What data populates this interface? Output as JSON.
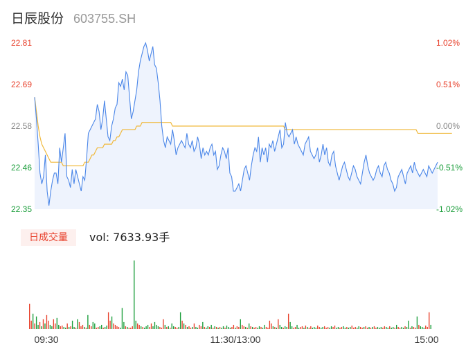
{
  "header": {
    "name": "日辰股份",
    "code": "603755.SH"
  },
  "volume_panel": {
    "tag": "日成交量",
    "label": "vol: 7633.93手"
  },
  "colors": {
    "price_line": "#4a86e8",
    "avg_line": "#f0b93c",
    "up": "#e8412c",
    "down": "#1a9d3a",
    "flat": "#888888",
    "fill": "#eef3fd"
  },
  "chart_data": [
    {
      "type": "line",
      "title": "",
      "x_ticks": [
        "09:30",
        "11:30/13:00",
        "15:00"
      ],
      "y_ticks": [
        "22.81",
        "22.69",
        "22.58",
        "22.46",
        "22.35"
      ],
      "y_right_ticks": [
        "1.02%",
        "0.51%",
        "0.00%",
        "-0.51%",
        "-1.02%"
      ],
      "ylim": [
        22.35,
        22.81
      ],
      "prev_close": 22.58,
      "grid": false,
      "series": [
        {
          "values": [
            22.66,
            22.6,
            22.53,
            22.45,
            22.42,
            22.44,
            22.5,
            22.4,
            22.36,
            22.4,
            22.43,
            22.45,
            22.45,
            22.42,
            22.52,
            22.48,
            22.52,
            22.56,
            22.44,
            22.43,
            22.41,
            22.46,
            22.42,
            22.46,
            22.44,
            22.42,
            22.4,
            22.44,
            22.43,
            22.49,
            22.56,
            22.57,
            22.58,
            22.59,
            22.6,
            22.64,
            22.62,
            22.57,
            22.6,
            22.65,
            22.6,
            22.55,
            22.54,
            22.58,
            22.6,
            22.63,
            22.64,
            22.7,
            22.69,
            22.71,
            22.68,
            22.73,
            22.72,
            22.66,
            22.6,
            22.62,
            22.65,
            22.68,
            22.73,
            22.76,
            22.78,
            22.8,
            22.81,
            22.79,
            22.76,
            22.78,
            22.8,
            22.75,
            22.74,
            22.7,
            22.65,
            22.58,
            22.54,
            22.52,
            22.55,
            22.54,
            22.53,
            22.57,
            22.54,
            22.5,
            22.52,
            22.53,
            22.54,
            22.53,
            22.52,
            22.56,
            22.53,
            22.52,
            22.54,
            22.51,
            22.52,
            22.55,
            22.53,
            22.49,
            22.52,
            22.5,
            22.51,
            22.5,
            22.52,
            22.53,
            22.5,
            22.51,
            22.46,
            22.47,
            22.5,
            22.52,
            22.51,
            22.49,
            22.52,
            22.45,
            22.44,
            22.4,
            22.4,
            22.41,
            22.42,
            22.4,
            22.43,
            22.46,
            22.47,
            22.45,
            22.43,
            22.47,
            22.5,
            22.52,
            22.51,
            22.55,
            22.48,
            22.52,
            22.5,
            22.52,
            22.48,
            22.53,
            22.52,
            22.54,
            22.51,
            22.53,
            22.55,
            22.57,
            22.52,
            22.53,
            22.59,
            22.56,
            22.55,
            22.56,
            22.57,
            22.53,
            22.55,
            22.53,
            22.52,
            22.51,
            22.5,
            22.53,
            22.54,
            22.55,
            22.51,
            22.5,
            22.49,
            22.5,
            22.52,
            22.48,
            22.5,
            22.53,
            22.5,
            22.52,
            22.48,
            22.47,
            22.5,
            22.51,
            22.47,
            22.45,
            22.43,
            22.45,
            22.47,
            22.48,
            22.46,
            22.44,
            22.43,
            22.45,
            22.47,
            22.46,
            22.44,
            22.43,
            22.42,
            22.45,
            22.48,
            22.5,
            22.47,
            22.45,
            22.44,
            22.43,
            22.44,
            22.46,
            22.47,
            22.45,
            22.44,
            22.47,
            22.48,
            22.46,
            22.45,
            22.43,
            22.42,
            22.4,
            22.41,
            22.44,
            22.45,
            22.46,
            22.44,
            22.42,
            22.45,
            22.46,
            22.47,
            22.45,
            22.48,
            22.46,
            22.45,
            22.44,
            22.45,
            22.46,
            22.45,
            22.44,
            22.47,
            22.46,
            22.45,
            22.46,
            22.47,
            22.48
          ]
        },
        {
          "values": [
            22.66,
            22.62,
            22.58,
            22.55,
            22.53,
            22.52,
            22.51,
            22.5,
            22.49,
            22.48,
            22.48,
            22.48,
            22.48,
            22.48,
            22.48,
            22.48,
            22.47,
            22.47,
            22.47,
            22.47,
            22.47,
            22.47,
            22.47,
            22.47,
            22.47,
            22.47,
            22.47,
            22.47,
            22.48,
            22.48,
            22.48,
            22.49,
            22.5,
            22.5,
            22.51,
            22.52,
            22.52,
            22.52,
            22.52,
            22.53,
            22.53,
            22.53,
            22.53,
            22.53,
            22.54,
            22.54,
            22.55,
            22.55,
            22.56,
            22.57,
            22.57,
            22.57,
            22.57,
            22.57,
            22.57,
            22.57,
            22.57,
            22.58,
            22.58,
            22.58,
            22.59,
            22.59,
            22.59,
            22.59,
            22.59,
            22.59,
            22.59,
            22.59,
            22.59,
            22.59,
            22.59,
            22.59,
            22.59,
            22.59,
            22.59,
            22.59,
            22.59,
            22.58,
            22.58,
            22.58,
            22.58,
            22.58,
            22.58,
            22.58,
            22.58,
            22.58,
            22.58,
            22.58,
            22.58,
            22.58,
            22.58,
            22.58,
            22.58,
            22.58,
            22.58,
            22.58,
            22.58,
            22.58,
            22.58,
            22.58,
            22.58,
            22.58,
            22.58,
            22.58,
            22.58,
            22.58,
            22.58,
            22.58,
            22.58,
            22.58,
            22.58,
            22.58,
            22.58,
            22.58,
            22.58,
            22.58,
            22.58,
            22.58,
            22.58,
            22.58,
            22.58,
            22.58,
            22.58,
            22.58,
            22.58,
            22.58,
            22.58,
            22.58,
            22.58,
            22.58,
            22.58,
            22.58,
            22.58,
            22.58,
            22.58,
            22.58,
            22.58,
            22.58,
            22.58,
            22.58,
            22.57,
            22.57,
            22.57,
            22.57,
            22.57,
            22.57,
            22.57,
            22.57,
            22.57,
            22.57,
            22.57,
            22.57,
            22.57,
            22.57,
            22.57,
            22.57,
            22.57,
            22.57,
            22.57,
            22.57,
            22.57,
            22.57,
            22.57,
            22.57,
            22.57,
            22.57,
            22.57,
            22.57,
            22.57,
            22.57,
            22.57,
            22.57,
            22.57,
            22.57,
            22.57,
            22.57,
            22.57,
            22.57,
            22.57,
            22.57,
            22.57,
            22.57,
            22.57,
            22.57,
            22.57,
            22.57,
            22.57,
            22.57,
            22.57,
            22.57,
            22.57,
            22.57,
            22.57,
            22.57,
            22.57,
            22.57,
            22.57,
            22.57,
            22.57,
            22.57,
            22.57,
            22.57,
            22.57,
            22.57,
            22.57,
            22.57,
            22.57,
            22.57,
            22.57,
            22.57,
            22.57,
            22.57,
            22.57,
            22.57,
            22.56,
            22.56,
            22.56,
            22.56,
            22.56,
            22.56,
            22.56,
            22.56,
            22.56,
            22.56,
            22.56,
            22.56,
            22.56,
            22.56,
            22.56,
            22.56,
            22.56,
            22.56,
            22.56,
            22.56
          ]
        }
      ]
    },
    {
      "type": "bar",
      "title": "",
      "ylim": [
        0,
        100
      ],
      "values": [
        36,
        12,
        22,
        8,
        18,
        6,
        10,
        4,
        14,
        8,
        20,
        12,
        6,
        4,
        14,
        8,
        16,
        6,
        4,
        5,
        3,
        2,
        8,
        3,
        4,
        12,
        3,
        2,
        14,
        10,
        4,
        6,
        3,
        2,
        20,
        6,
        4,
        10,
        8,
        2,
        3,
        4,
        6,
        2,
        3,
        5,
        24,
        12,
        18,
        8,
        6,
        4,
        3,
        2,
        30,
        10,
        4,
        3,
        2,
        2,
        4,
        98,
        12,
        8,
        6,
        4,
        3,
        2,
        4,
        6,
        3,
        8,
        4,
        10,
        6,
        4,
        3,
        2,
        14,
        6,
        3,
        4,
        2,
        8,
        4,
        3,
        2,
        3,
        24,
        12,
        8,
        6,
        3,
        4,
        2,
        3,
        8,
        3,
        2,
        6,
        4,
        10,
        3,
        2,
        4,
        3,
        6,
        2,
        4,
        3,
        2,
        3,
        2,
        4,
        2,
        5,
        3,
        2,
        3,
        6,
        2,
        4,
        3,
        14,
        6,
        4,
        3,
        2,
        8,
        4,
        3,
        2,
        3,
        2,
        4,
        3,
        2,
        6,
        3,
        2,
        12,
        8,
        4,
        3,
        2,
        14,
        6,
        3,
        2,
        4,
        3,
        22,
        10,
        4,
        2,
        3,
        6,
        2,
        3,
        4,
        2,
        5,
        3,
        2,
        4,
        2,
        3,
        2,
        5,
        3,
        2,
        3,
        4,
        2,
        3,
        2,
        4,
        3,
        5,
        2,
        3,
        2,
        3,
        4,
        2,
        3,
        2,
        3,
        5,
        2,
        3,
        2,
        4,
        3,
        2,
        3,
        4,
        2,
        3,
        2,
        3,
        4,
        2,
        3,
        2,
        3,
        2,
        4,
        3,
        2,
        4,
        2,
        3,
        2,
        6,
        3,
        2,
        3,
        2,
        4,
        3,
        12,
        2,
        4,
        3,
        2,
        18,
        6,
        4,
        3,
        2,
        5,
        3,
        24,
        6
      ],
      "dirs": [
        1,
        1,
        -1,
        1,
        -1,
        -1,
        1,
        -1,
        1,
        -1,
        1,
        1,
        -1,
        -1,
        1,
        1,
        -1,
        -1,
        1,
        1,
        -1,
        -1,
        1,
        -1,
        1,
        -1,
        -1,
        1,
        -1,
        1,
        1,
        1,
        -1,
        1,
        -1,
        1,
        1,
        -1,
        -1,
        1,
        1,
        -1,
        -1,
        1,
        -1,
        -1,
        1,
        1,
        -1,
        1,
        1,
        1,
        1,
        -1,
        -1,
        -1,
        1,
        -1,
        1,
        1,
        1,
        -1,
        -1,
        1,
        1,
        -1,
        1,
        -1,
        -1,
        -1,
        1,
        1,
        -1,
        -1,
        -1,
        -1,
        1,
        1,
        1,
        -1,
        1,
        -1,
        1,
        -1,
        -1,
        1,
        1,
        -1,
        -1,
        1,
        -1,
        1,
        -1,
        1,
        1,
        -1,
        1,
        -1,
        -1,
        1,
        1,
        -1,
        1,
        -1,
        -1,
        1,
        -1,
        1,
        -1,
        1,
        -1,
        1,
        -1,
        -1,
        1,
        -1,
        -1,
        -1,
        1,
        1,
        -1,
        1,
        1,
        -1,
        1,
        1,
        -1,
        1,
        -1,
        1,
        -1,
        1,
        1,
        -1,
        -1,
        1,
        -1,
        -1,
        1,
        1,
        1,
        1,
        -1,
        1,
        -1,
        1,
        -1,
        -1,
        1,
        -1,
        -1,
        1,
        -1,
        -1,
        1,
        1,
        -1,
        -1,
        1,
        1,
        -1,
        1,
        -1,
        1,
        1,
        -1,
        -1,
        -1,
        1,
        1,
        -1,
        -1,
        1,
        1,
        1,
        -1,
        -1,
        1,
        1,
        -1,
        -1,
        1,
        1,
        -1,
        -1,
        1,
        -1,
        -1,
        1,
        1,
        1,
        -1,
        -1,
        1,
        1,
        -1,
        1,
        1,
        -1,
        1,
        -1,
        1,
        1,
        -1,
        -1,
        -1,
        1,
        1,
        -1,
        -1,
        1,
        -1,
        -1,
        1,
        -1,
        1,
        1,
        -1,
        -1,
        1,
        -1,
        -1,
        1,
        -1,
        1,
        1,
        -1,
        1,
        -1,
        -1,
        -1,
        1,
        1,
        1,
        -1,
        1,
        -1,
        1,
        1,
        -1
      ]
    }
  ]
}
